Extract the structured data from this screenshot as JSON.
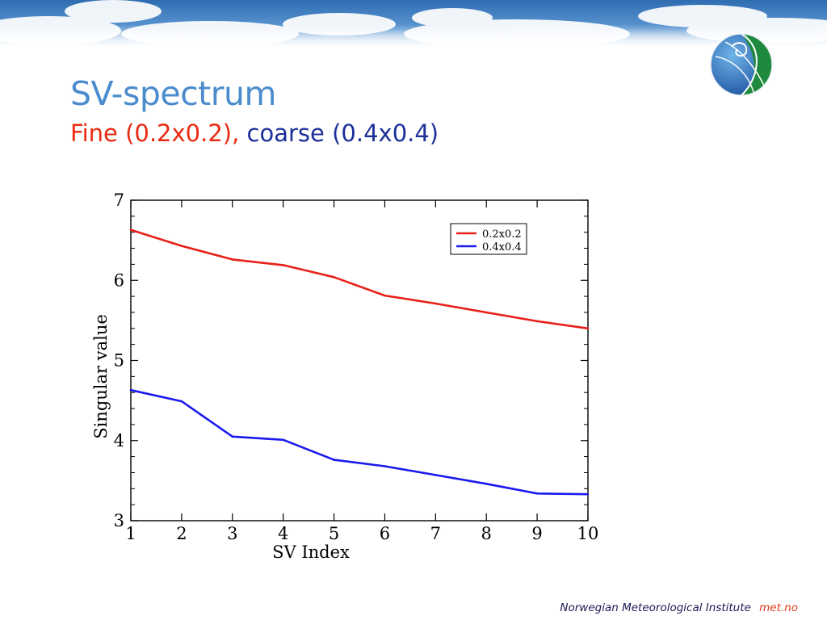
{
  "slide": {
    "title": "SV-spectrum",
    "subtitle_fine": "Fine (0.2x0.2),",
    "subtitle_coarse": "coarse (0.4x0.4)"
  },
  "footer": {
    "organization": "Norwegian Meteorological Institute",
    "site": "met.no"
  },
  "logo": {
    "icon": "met-no-globe-logo"
  },
  "colors": {
    "title": "#4a8ccd",
    "subtitle_fine": "#ea2a10",
    "subtitle_coarse": "#1c2f99",
    "series_fine": "#e8201a",
    "series_coarse": "#1a1aee"
  },
  "chart_data": {
    "type": "line",
    "xlabel": "SV Index",
    "ylabel": "Singular value",
    "xlim": [
      1,
      10
    ],
    "ylim": [
      3,
      7
    ],
    "x_ticks": [
      1,
      2,
      3,
      4,
      5,
      6,
      7,
      8,
      9,
      10
    ],
    "y_ticks": [
      3,
      4,
      5,
      6,
      7
    ],
    "grid": false,
    "legend_position": "top-right",
    "x": [
      1,
      2,
      3,
      4,
      5,
      6,
      7,
      8,
      9,
      10
    ],
    "series": [
      {
        "name": "0.2x0.2",
        "color": "#e8201a",
        "values": [
          6.63,
          6.43,
          6.26,
          6.19,
          6.04,
          5.81,
          5.71,
          5.6,
          5.49,
          5.4
        ]
      },
      {
        "name": "0.4x0.4",
        "color": "#1a1aee",
        "values": [
          4.63,
          4.49,
          4.05,
          4.01,
          3.76,
          3.68,
          3.57,
          3.46,
          3.34,
          3.33
        ]
      }
    ]
  }
}
